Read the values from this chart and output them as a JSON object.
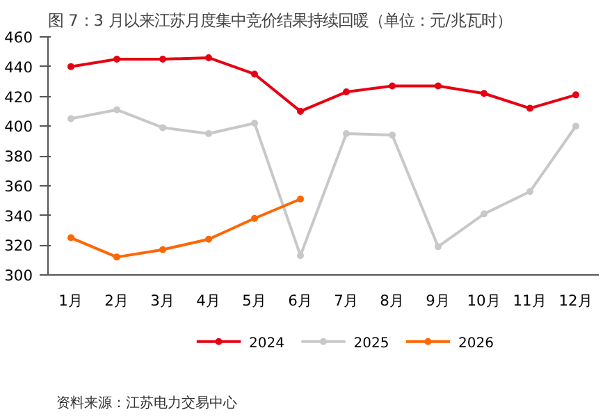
{
  "chart_data": {
    "type": "line",
    "title": "图 7：3 月以来江苏月度集中竞价结果持续回暖（单位：元/兆瓦时）",
    "categories": [
      "1月",
      "2月",
      "3月",
      "4月",
      "5月",
      "6月",
      "7月",
      "8月",
      "9月",
      "10月",
      "11月",
      "12月"
    ],
    "series": [
      {
        "name": "2024",
        "color": "#e60012",
        "values": [
          440,
          445,
          445,
          446,
          435,
          410,
          423,
          427,
          427,
          422,
          412,
          421
        ]
      },
      {
        "name": "2025",
        "color": "#c8c8c8",
        "values": [
          405,
          411,
          399,
          395,
          402,
          313,
          395,
          394,
          319,
          341,
          356,
          400
        ]
      },
      {
        "name": "2026",
        "color": "#ff6600",
        "values": [
          325,
          312,
          317,
          324,
          338,
          351,
          null,
          null,
          null,
          null,
          null,
          null
        ]
      }
    ],
    "ylim": [
      300,
      460
    ],
    "yticks": [
      300,
      320,
      340,
      360,
      380,
      400,
      420,
      440,
      460
    ],
    "grid": false,
    "legend": "bottom",
    "marker": "circle",
    "line_style": "solid",
    "annotations": [
      "资料来源：江苏电力交易中心"
    ]
  }
}
